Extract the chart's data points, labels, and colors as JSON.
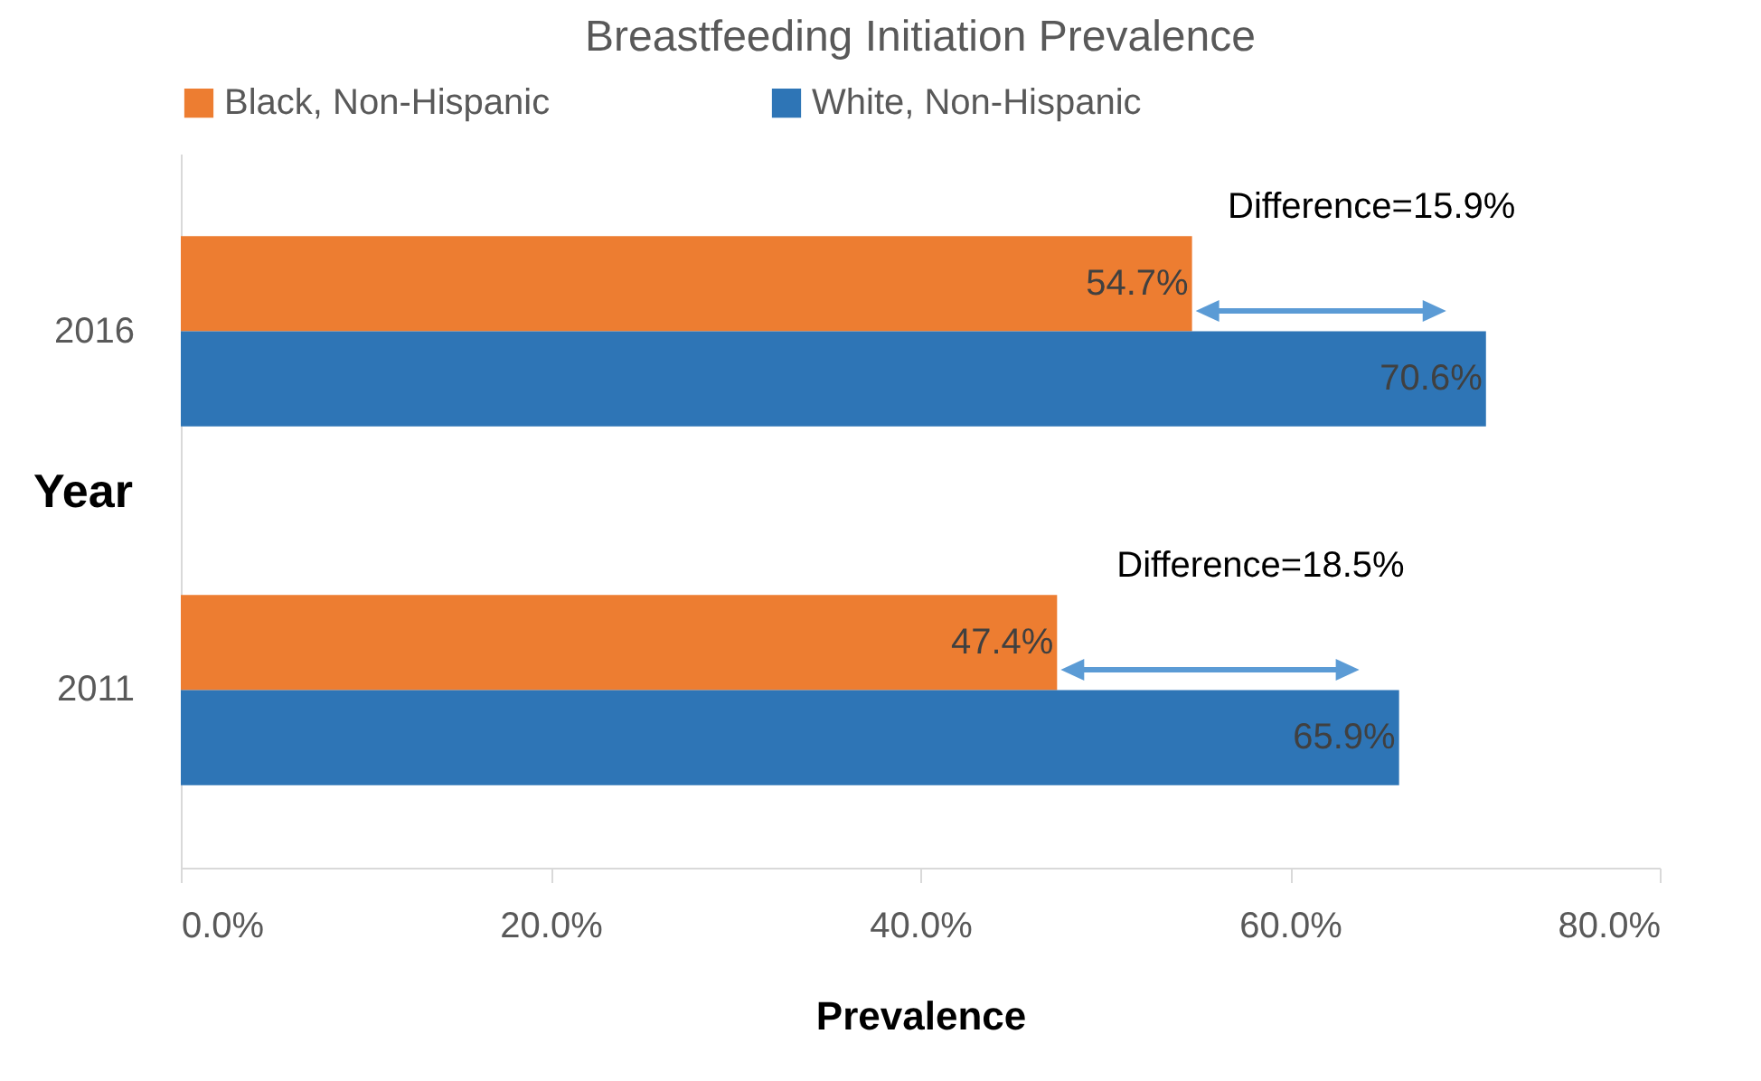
{
  "chart_data": {
    "type": "bar",
    "orientation": "horizontal",
    "title": "Breastfeeding Initiation Prevalence",
    "xlabel": "Prevalence",
    "ylabel": "Year",
    "categories": [
      "2016",
      "2011"
    ],
    "series": [
      {
        "name": "Black, Non-Hispanic",
        "color": "#ed7d31",
        "values": [
          54.7,
          47.4
        ],
        "value_labels": [
          "54.7%",
          "47.4%"
        ]
      },
      {
        "name": "White, Non-Hispanic",
        "color": "#2e75b6",
        "values": [
          70.6,
          65.9
        ],
        "value_labels": [
          "70.6%",
          "65.9%"
        ]
      }
    ],
    "xlim": [
      0,
      80
    ],
    "xticks": [
      {
        "value": 0,
        "label": "0.0%"
      },
      {
        "value": 20,
        "label": "20.0%"
      },
      {
        "value": 40,
        "label": "40.0%"
      },
      {
        "value": 60,
        "label": "60.0%"
      },
      {
        "value": 80,
        "label": "80.0%"
      }
    ],
    "legend": "top",
    "annotations": [
      "Difference=15.9%",
      "Difference=18.5%"
    ]
  }
}
